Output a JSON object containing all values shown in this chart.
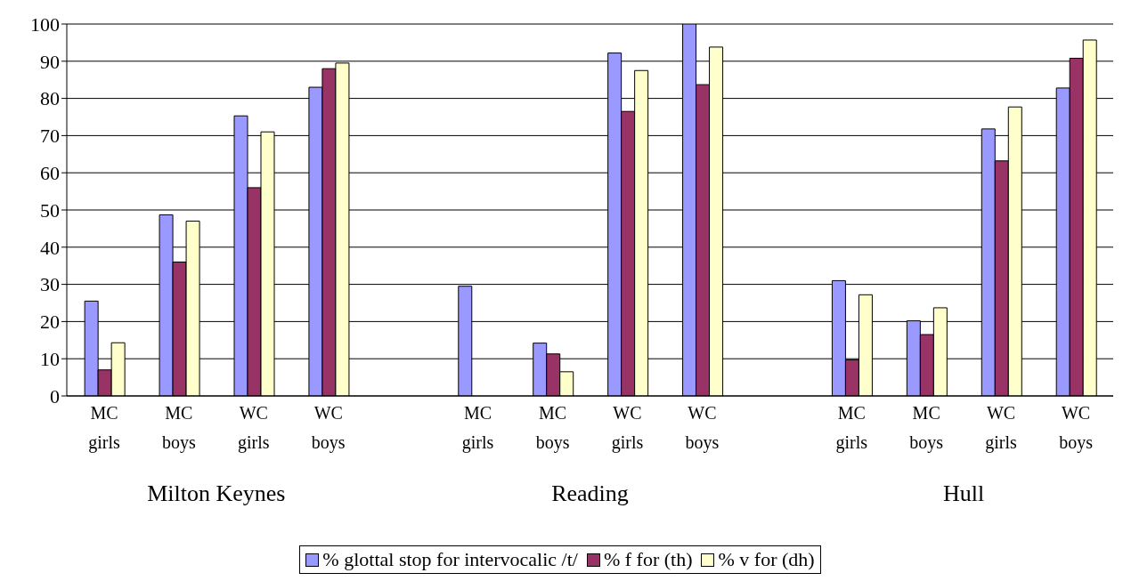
{
  "chart_data": {
    "type": "bar",
    "categories": [
      "MC girls",
      "MC boys",
      "WC girls",
      "WC boys",
      null,
      "MC girls",
      "MC boys",
      "WC girls",
      "WC boys",
      null,
      "MC girls",
      "MC boys",
      "WC girls",
      "WC boys"
    ],
    "series": [
      {
        "name": "% glottal stop for intervocalic /t/",
        "color": "#9999ff",
        "values": [
          25.5,
          48.7,
          75.3,
          83,
          null,
          29.5,
          14.2,
          92.2,
          100,
          null,
          31,
          20.2,
          71.8,
          82.8
        ]
      },
      {
        "name": "% f for (th)",
        "color": "#993366",
        "values": [
          7,
          36,
          56,
          88,
          null,
          null,
          11.3,
          76.5,
          83.7,
          null,
          9.7,
          16.5,
          63.2,
          90.8
        ]
      },
      {
        "name": "% v for (dh)",
        "color": "#ffffcc",
        "values": [
          14.3,
          47,
          71,
          89.5,
          null,
          null,
          6.5,
          87.5,
          93.8,
          null,
          27.2,
          23.7,
          77.7,
          95.7
        ]
      }
    ],
    "annotations": [
      "Milton Keynes",
      "Reading",
      "Hull"
    ],
    "ylim": [
      0,
      100
    ],
    "yticks": [
      0,
      10,
      20,
      30,
      40,
      50,
      60,
      70,
      80,
      90,
      100
    ],
    "grid": "y",
    "legend": "bottom"
  }
}
